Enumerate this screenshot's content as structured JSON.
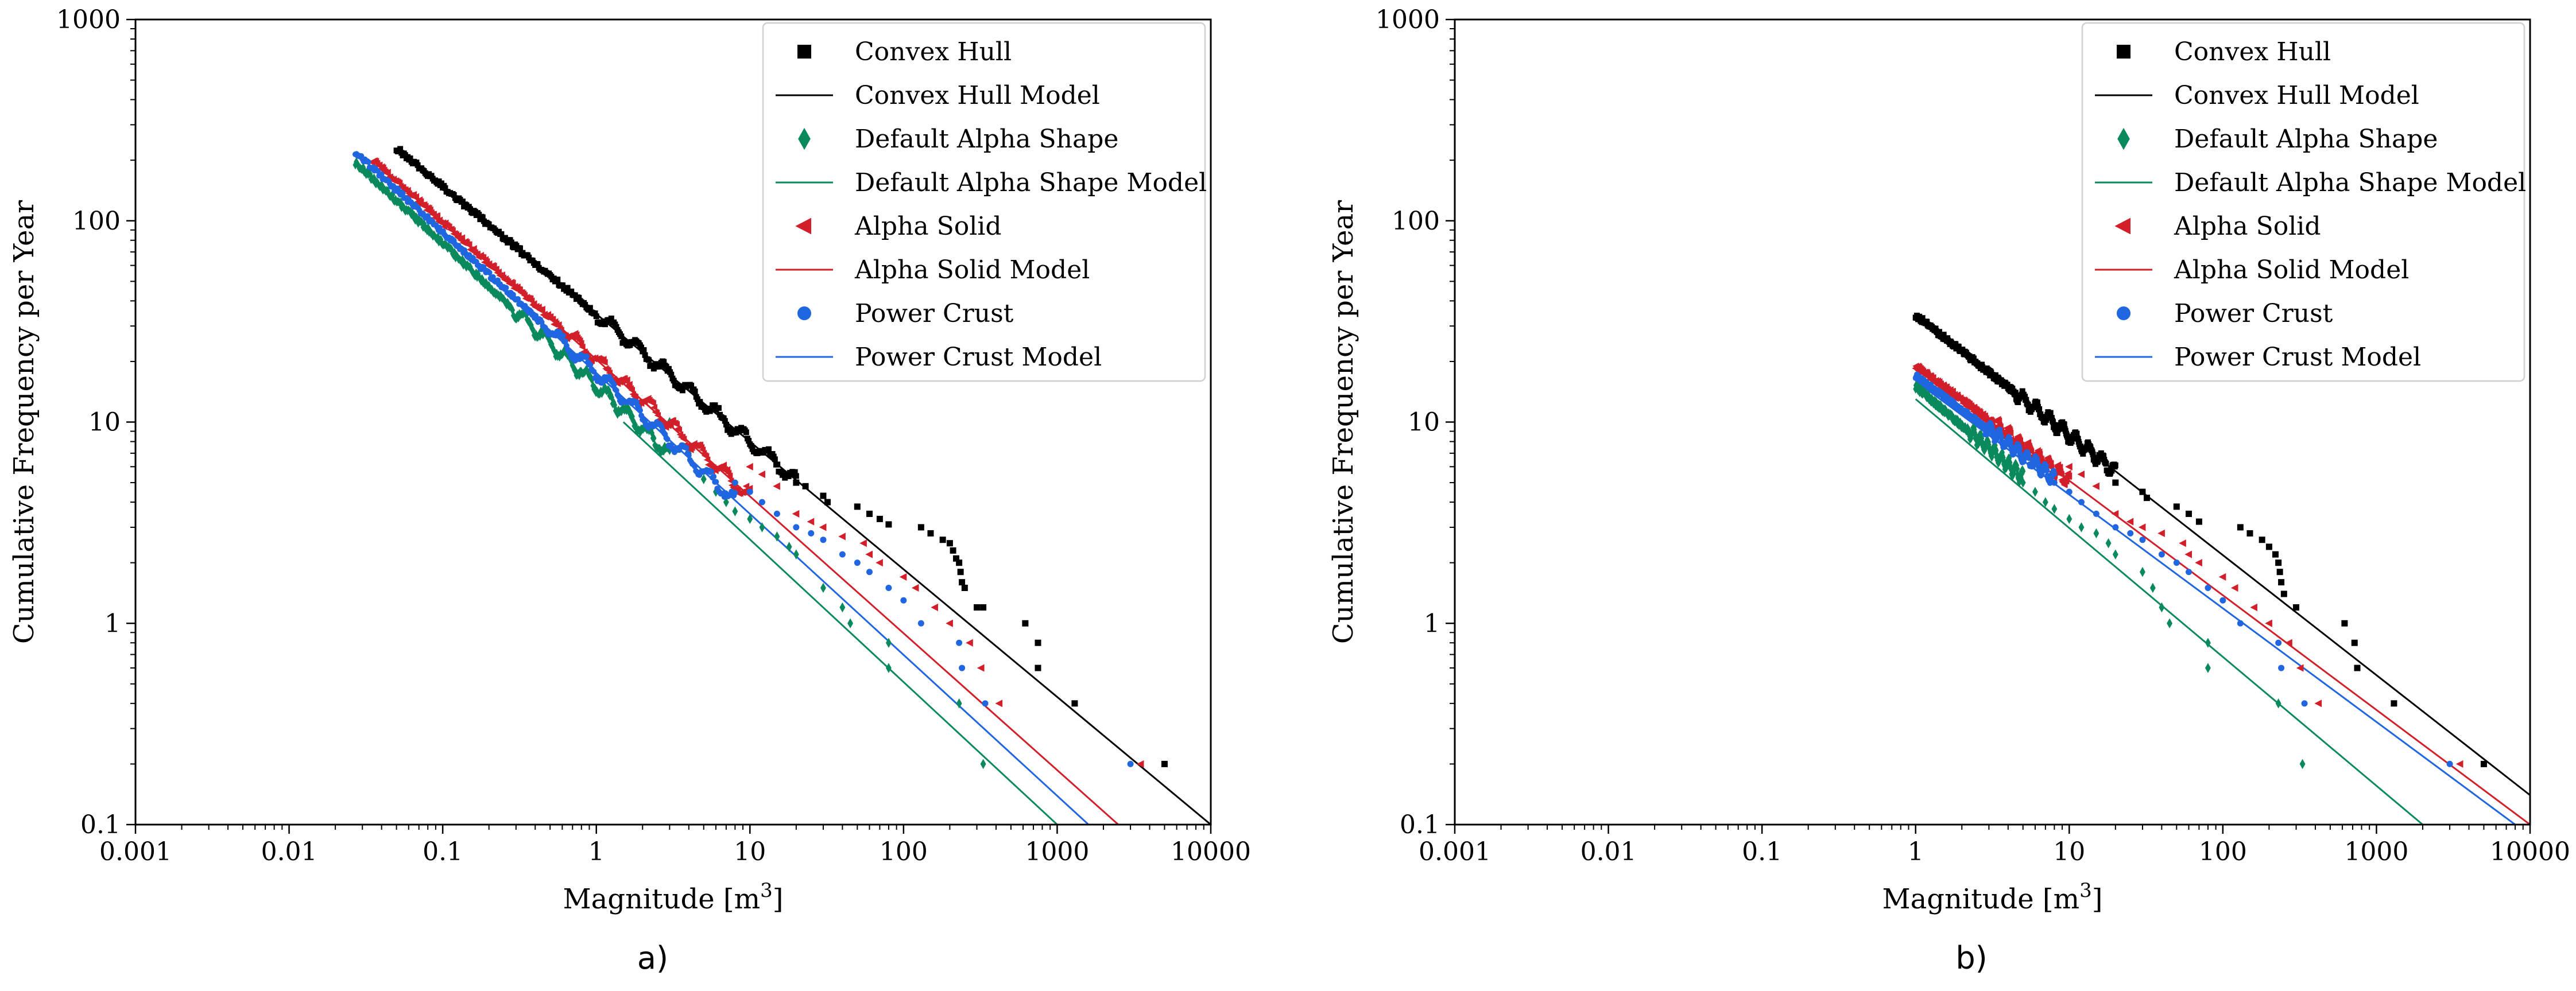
{
  "figure": {
    "panels": [
      {
        "id": "a",
        "label": "a)"
      },
      {
        "id": "b",
        "label": "b)"
      }
    ]
  },
  "colors": {
    "convex_hull": "#000000",
    "default_alpha_shape": "#0a8a5c",
    "alpha_solid": "#d21f2a",
    "power_crust": "#1f66e0"
  },
  "chart_data": [
    {
      "type": "scatter",
      "panel": "a",
      "title": "",
      "xlabel": "Magnitude [m",
      "xlabel_sup": "3",
      "xlabel_end": "]",
      "ylabel": "Cumulative Frequency per Year",
      "xscale": "log",
      "yscale": "log",
      "xlim": [
        0.001,
        10000
      ],
      "ylim": [
        0.1,
        1000
      ],
      "xticks": [
        0.001,
        0.01,
        0.1,
        1,
        10,
        100,
        1000,
        10000
      ],
      "xtick_labels": [
        "0.001",
        "0.01",
        "0.1",
        "1",
        "10",
        "100",
        "1000",
        "10000"
      ],
      "yticks": [
        0.1,
        1,
        10,
        100,
        1000
      ],
      "ytick_labels": [
        "0.1",
        "1",
        "10",
        "100",
        "1000"
      ],
      "legend": {
        "position": "top-right",
        "entries": [
          {
            "label": "Convex Hull",
            "kind": "marker",
            "marker": "square",
            "color": "#000000"
          },
          {
            "label": "Convex Hull Model",
            "kind": "line",
            "color": "#000000"
          },
          {
            "label": "Default Alpha Shape",
            "kind": "marker",
            "marker": "diamond",
            "color": "#0a8a5c"
          },
          {
            "label": "Default Alpha Shape Model",
            "kind": "line",
            "color": "#0a8a5c"
          },
          {
            "label": "Alpha Solid",
            "kind": "marker",
            "marker": "triangle-left",
            "color": "#d21f2a"
          },
          {
            "label": "Alpha Solid Model",
            "kind": "line",
            "color": "#d21f2a"
          },
          {
            "label": "Power Crust",
            "kind": "marker",
            "marker": "circle",
            "color": "#1f66e0"
          },
          {
            "label": "Power Crust Model",
            "kind": "line",
            "color": "#1f66e0"
          }
        ]
      },
      "series": [
        {
          "name": "Convex Hull",
          "marker": "square",
          "color": "#000000",
          "dense_range": [
            0.05,
            20
          ],
          "dense_y_start": 230,
          "points": [
            [
              20,
              5.0
            ],
            [
              23,
              4.8
            ],
            [
              30,
              4.3
            ],
            [
              32,
              4.0
            ],
            [
              50,
              3.8
            ],
            [
              60,
              3.5
            ],
            [
              70,
              3.3
            ],
            [
              80,
              3.1
            ],
            [
              130,
              3.0
            ],
            [
              150,
              2.8
            ],
            [
              180,
              2.6
            ],
            [
              200,
              2.5
            ],
            [
              210,
              2.3
            ],
            [
              220,
              2.1
            ],
            [
              230,
              2.0
            ],
            [
              235,
              1.8
            ],
            [
              240,
              1.6
            ],
            [
              250,
              1.5
            ],
            [
              300,
              1.2
            ],
            [
              330,
              1.2
            ],
            [
              620,
              1.0
            ],
            [
              750,
              0.8
            ],
            [
              750,
              0.6
            ],
            [
              1300,
              0.4
            ],
            [
              5000,
              0.2
            ]
          ]
        },
        {
          "name": "Convex Hull Model",
          "kind": "line",
          "color": "#000000",
          "x": [
            0.05,
            10000
          ],
          "y": [
            230,
            0.1
          ]
        },
        {
          "name": "Default Alpha Shape",
          "marker": "diamond",
          "color": "#0a8a5c",
          "dense_range": [
            0.027,
            3
          ],
          "dense_y_start": 195,
          "points": [
            [
              3,
              10
            ],
            [
              4,
              7
            ],
            [
              5,
              5.2
            ],
            [
              6,
              4.5
            ],
            [
              7,
              4.0
            ],
            [
              8,
              3.6
            ],
            [
              10,
              3.3
            ],
            [
              12,
              3.0
            ],
            [
              15,
              2.7
            ],
            [
              18,
              2.4
            ],
            [
              20,
              2.2
            ],
            [
              30,
              1.5
            ],
            [
              40,
              1.2
            ],
            [
              45,
              1.0
            ],
            [
              80,
              0.8
            ],
            [
              80,
              0.6
            ],
            [
              230,
              0.4
            ],
            [
              330,
              0.2
            ]
          ]
        },
        {
          "name": "Default Alpha Shape Model",
          "kind": "line",
          "color": "#0a8a5c",
          "x": [
            1.5,
            1000
          ],
          "y": [
            10,
            0.1
          ]
        },
        {
          "name": "Alpha Solid",
          "marker": "triangle-left",
          "color": "#d21f2a",
          "dense_range": [
            0.035,
            10
          ],
          "dense_y_start": 200,
          "points": [
            [
              10,
              6
            ],
            [
              12,
              5.5
            ],
            [
              15,
              4.8
            ],
            [
              20,
              3.5
            ],
            [
              25,
              3.2
            ],
            [
              30,
              3.0
            ],
            [
              40,
              2.7
            ],
            [
              55,
              2.5
            ],
            [
              60,
              2.2
            ],
            [
              70,
              2.0
            ],
            [
              100,
              1.7
            ],
            [
              120,
              1.5
            ],
            [
              160,
              1.2
            ],
            [
              200,
              1.0
            ],
            [
              270,
              0.8
            ],
            [
              320,
              0.6
            ],
            [
              420,
              0.4
            ],
            [
              3500,
              0.2
            ]
          ]
        },
        {
          "name": "Alpha Solid Model",
          "kind": "line",
          "color": "#d21f2a",
          "x": [
            0.035,
            2500
          ],
          "y": [
            200,
            0.1
          ]
        },
        {
          "name": "Power Crust",
          "marker": "circle",
          "color": "#1f66e0",
          "dense_range": [
            0.027,
            8
          ],
          "dense_y_start": 220,
          "points": [
            [
              8,
              5
            ],
            [
              10,
              4.5
            ],
            [
              12,
              4.0
            ],
            [
              15,
              3.5
            ],
            [
              20,
              3.0
            ],
            [
              25,
              2.8
            ],
            [
              30,
              2.6
            ],
            [
              40,
              2.2
            ],
            [
              50,
              2.0
            ],
            [
              60,
              1.8
            ],
            [
              80,
              1.5
            ],
            [
              100,
              1.3
            ],
            [
              130,
              1.0
            ],
            [
              230,
              0.8
            ],
            [
              240,
              0.6
            ],
            [
              340,
              0.4
            ],
            [
              3000,
              0.2
            ]
          ]
        },
        {
          "name": "Power Crust Model",
          "kind": "line",
          "color": "#1f66e0",
          "x": [
            0.027,
            1600
          ],
          "y": [
            220,
            0.1
          ]
        }
      ]
    },
    {
      "type": "scatter",
      "panel": "b",
      "title": "",
      "xlabel": "Magnitude [m",
      "xlabel_sup": "3",
      "xlabel_end": "]",
      "ylabel": "Cumulative Frequency per Year",
      "xscale": "log",
      "yscale": "log",
      "xlim": [
        0.001,
        10000
      ],
      "ylim": [
        0.1,
        1000
      ],
      "xticks": [
        0.001,
        0.01,
        0.1,
        1,
        10,
        100,
        1000,
        10000
      ],
      "xtick_labels": [
        "0.001",
        "0.01",
        "0.1",
        "1",
        "10",
        "100",
        "1000",
        "10000"
      ],
      "yticks": [
        0.1,
        1,
        10,
        100,
        1000
      ],
      "ytick_labels": [
        "0.1",
        "1",
        "10",
        "100",
        "1000"
      ],
      "legend": {
        "position": "top-right",
        "entries": [
          {
            "label": "Convex Hull",
            "kind": "marker",
            "marker": "square",
            "color": "#000000"
          },
          {
            "label": "Convex Hull Model",
            "kind": "line",
            "color": "#000000"
          },
          {
            "label": "Default Alpha Shape",
            "kind": "marker",
            "marker": "diamond",
            "color": "#0a8a5c"
          },
          {
            "label": "Default Alpha Shape Model",
            "kind": "line",
            "color": "#0a8a5c"
          },
          {
            "label": "Alpha Solid",
            "kind": "marker",
            "marker": "triangle-left",
            "color": "#d21f2a"
          },
          {
            "label": "Alpha Solid Model",
            "kind": "line",
            "color": "#d21f2a"
          },
          {
            "label": "Power Crust",
            "kind": "marker",
            "marker": "circle",
            "color": "#1f66e0"
          },
          {
            "label": "Power Crust Model",
            "kind": "line",
            "color": "#1f66e0"
          }
        ]
      },
      "series": [
        {
          "name": "Convex Hull",
          "marker": "square",
          "color": "#000000",
          "dense_range": [
            1,
            20
          ],
          "dense_y_start": 34,
          "points": [
            [
              20,
              5.0
            ],
            [
              30,
              4.5
            ],
            [
              32,
              4.2
            ],
            [
              50,
              3.8
            ],
            [
              60,
              3.5
            ],
            [
              70,
              3.2
            ],
            [
              130,
              3.0
            ],
            [
              150,
              2.8
            ],
            [
              180,
              2.6
            ],
            [
              200,
              2.4
            ],
            [
              220,
              2.2
            ],
            [
              230,
              2.0
            ],
            [
              235,
              1.8
            ],
            [
              240,
              1.6
            ],
            [
              250,
              1.4
            ],
            [
              300,
              1.2
            ],
            [
              620,
              1.0
            ],
            [
              720,
              0.8
            ],
            [
              750,
              0.6
            ],
            [
              1300,
              0.4
            ],
            [
              5000,
              0.2
            ]
          ]
        },
        {
          "name": "Convex Hull Model",
          "kind": "line",
          "color": "#000000",
          "x": [
            1,
            10000
          ],
          "y": [
            34,
            0.14
          ]
        },
        {
          "name": "Default Alpha Shape",
          "marker": "diamond",
          "color": "#0a8a5c",
          "dense_range": [
            1,
            5
          ],
          "dense_y_start": 15,
          "points": [
            [
              5,
              5.0
            ],
            [
              6,
              4.5
            ],
            [
              7,
              4.0
            ],
            [
              8,
              3.7
            ],
            [
              10,
              3.3
            ],
            [
              12,
              3.0
            ],
            [
              15,
              2.8
            ],
            [
              18,
              2.5
            ],
            [
              20,
              2.2
            ],
            [
              30,
              1.8
            ],
            [
              35,
              1.5
            ],
            [
              40,
              1.2
            ],
            [
              45,
              1.0
            ],
            [
              80,
              0.8
            ],
            [
              80,
              0.6
            ],
            [
              230,
              0.4
            ],
            [
              330,
              0.2
            ]
          ]
        },
        {
          "name": "Default Alpha Shape Model",
          "kind": "line",
          "color": "#0a8a5c",
          "x": [
            1,
            2000
          ],
          "y": [
            13,
            0.1
          ]
        },
        {
          "name": "Alpha Solid",
          "marker": "triangle-left",
          "color": "#d21f2a",
          "dense_range": [
            1,
            10
          ],
          "dense_y_start": 19,
          "points": [
            [
              10,
              6
            ],
            [
              12,
              5.5
            ],
            [
              15,
              4.8
            ],
            [
              20,
              3.5
            ],
            [
              25,
              3.2
            ],
            [
              30,
              3.0
            ],
            [
              40,
              2.8
            ],
            [
              55,
              2.5
            ],
            [
              60,
              2.2
            ],
            [
              70,
              2.0
            ],
            [
              100,
              1.7
            ],
            [
              120,
              1.5
            ],
            [
              160,
              1.2
            ],
            [
              200,
              1.0
            ],
            [
              270,
              0.8
            ],
            [
              320,
              0.6
            ],
            [
              420,
              0.4
            ],
            [
              3500,
              0.2
            ]
          ]
        },
        {
          "name": "Alpha Solid Model",
          "kind": "line",
          "color": "#d21f2a",
          "x": [
            1,
            10000
          ],
          "y": [
            19,
            0.1
          ]
        },
        {
          "name": "Power Crust",
          "marker": "circle",
          "color": "#1f66e0",
          "dense_range": [
            1,
            8
          ],
          "dense_y_start": 17,
          "points": [
            [
              8,
              5
            ],
            [
              10,
              4.5
            ],
            [
              12,
              4.0
            ],
            [
              15,
              3.5
            ],
            [
              20,
              3.0
            ],
            [
              25,
              2.8
            ],
            [
              30,
              2.6
            ],
            [
              40,
              2.2
            ],
            [
              50,
              2.0
            ],
            [
              60,
              1.8
            ],
            [
              80,
              1.5
            ],
            [
              100,
              1.3
            ],
            [
              130,
              1.0
            ],
            [
              230,
              0.8
            ],
            [
              240,
              0.6
            ],
            [
              340,
              0.4
            ],
            [
              3000,
              0.2
            ]
          ]
        },
        {
          "name": "Power Crust Model",
          "kind": "line",
          "color": "#1f66e0",
          "x": [
            1,
            8000
          ],
          "y": [
            16,
            0.1
          ]
        }
      ]
    }
  ]
}
